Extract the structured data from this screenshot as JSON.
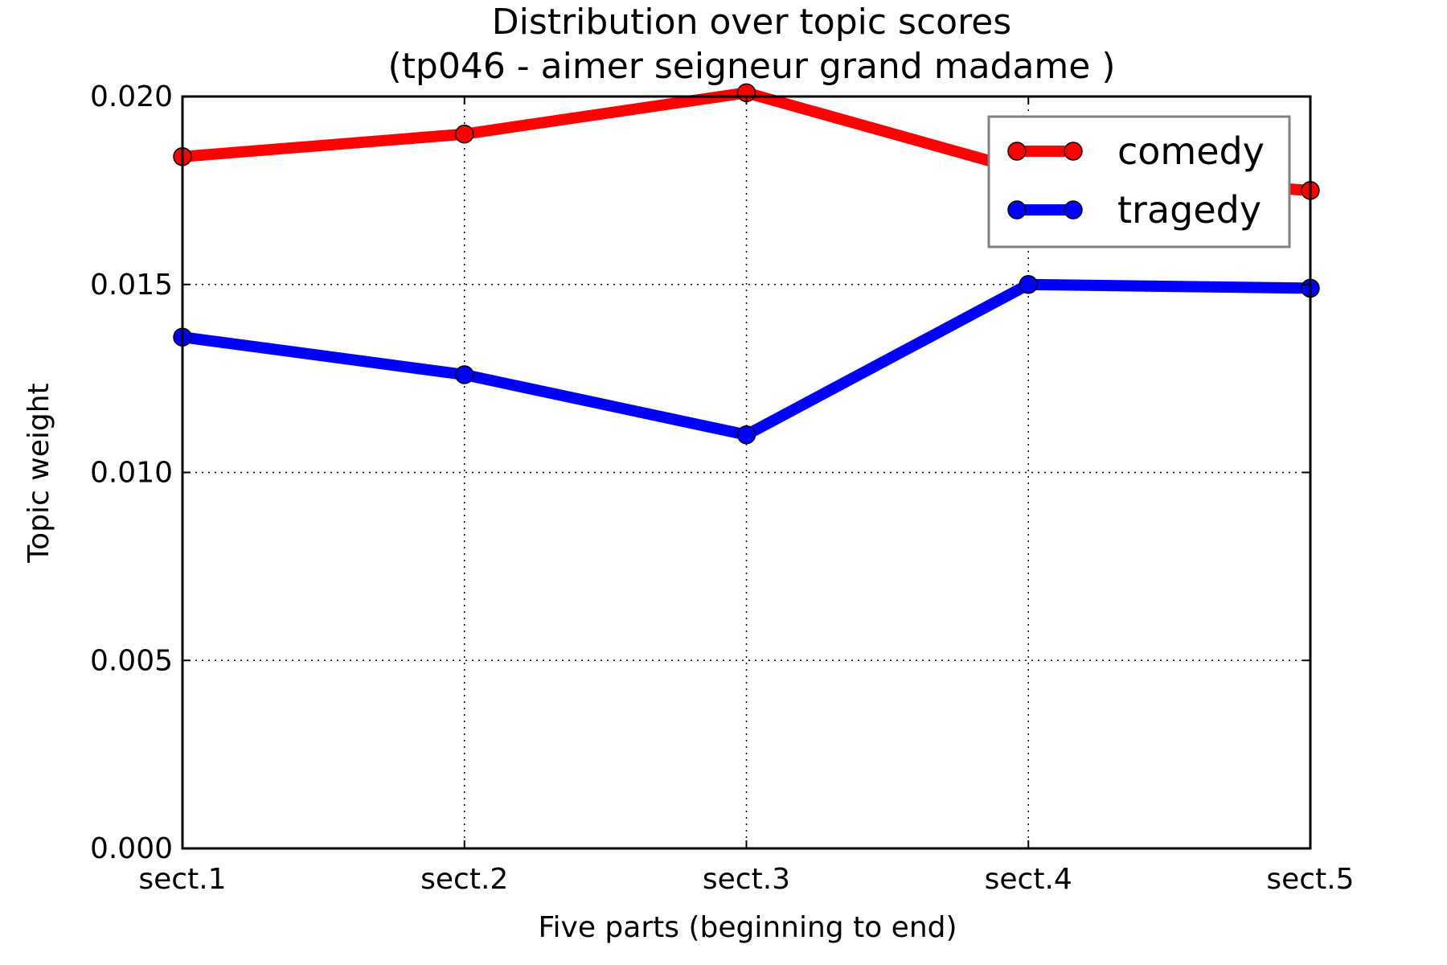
{
  "chart_data": {
    "type": "line",
    "title": "Distribution over topic scores",
    "subtitle": "(tp046 - aimer seigneur grand madame )",
    "xlabel": "Five parts (beginning to end)",
    "ylabel": "Topic weight",
    "categories": [
      "sect.1",
      "sect.2",
      "sect.3",
      "sect.4",
      "sect.5"
    ],
    "ylim": [
      0,
      0.02
    ],
    "yticks": [
      "0.000",
      "0.005",
      "0.010",
      "0.015",
      "0.020"
    ],
    "grid": true,
    "legend_position": "top-right",
    "series": [
      {
        "name": "comedy",
        "color": "#ff0000",
        "values": [
          0.0184,
          0.019,
          0.0201,
          0.018,
          0.0175
        ]
      },
      {
        "name": "tragedy",
        "color": "#0000ff",
        "values": [
          0.0136,
          0.0126,
          0.011,
          0.015,
          0.0149
        ]
      }
    ]
  }
}
